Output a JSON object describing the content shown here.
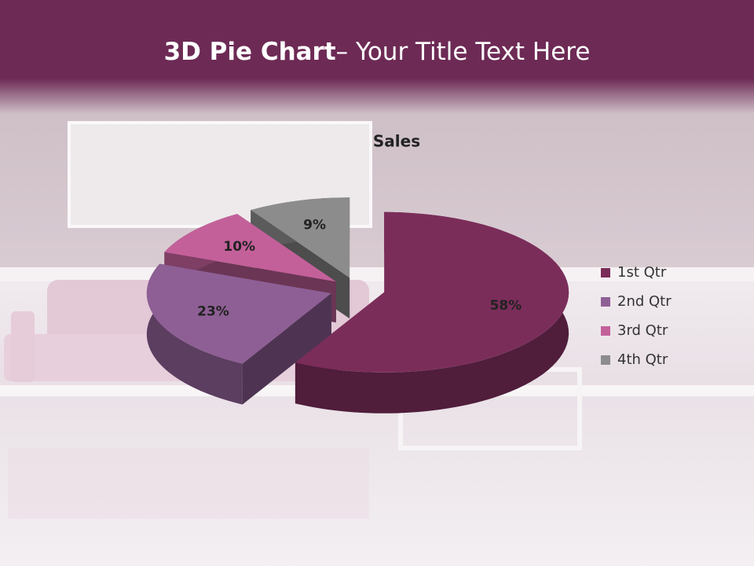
{
  "header": {
    "title_bold": "3D Pie Chart",
    "title_rest": "– Your Title Text Here"
  },
  "chart_data": {
    "type": "pie",
    "title": "Sales",
    "categories": [
      "1st Qtr",
      "2nd Qtr",
      "3rd Qtr",
      "4th Qtr"
    ],
    "values": [
      58,
      23,
      10,
      9
    ],
    "value_labels": [
      "58%",
      "23%",
      "10%",
      "9%"
    ],
    "colors": [
      "#7b2d5a",
      "#8e5f95",
      "#c3609a",
      "#8c8c8c"
    ],
    "legend": "right"
  }
}
